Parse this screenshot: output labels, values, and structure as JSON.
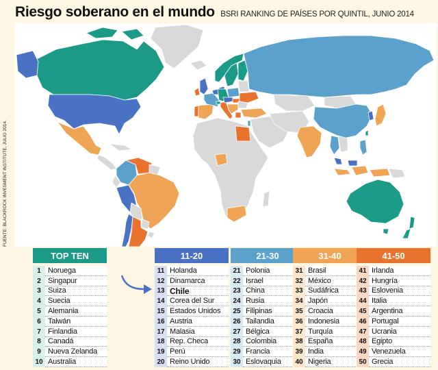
{
  "header": {
    "title": "Riesgo soberano en el mundo",
    "subtitle": "BSRI RANKING DE PAÍSES POR QUINTIL, JUNIO 2014"
  },
  "source": "FUENTE: BLACKROCK INVESMENT INSTITUTE, JULIO 2014.",
  "colors": {
    "top_ten": "#1b9a88",
    "q11_20": "#4a72c4",
    "q21_30": "#5ba1cc",
    "q31_40": "#f0a455",
    "q41_50": "#e8732e",
    "unranked": "#d9d9d9",
    "ocean": "#ffffff"
  },
  "panels": {
    "top10": {
      "header": "TOP TEN",
      "rows": [
        {
          "n": "1",
          "name": "Noruega"
        },
        {
          "n": "2",
          "name": "Singapur"
        },
        {
          "n": "3",
          "name": "Suiza"
        },
        {
          "n": "4",
          "name": "Suecia"
        },
        {
          "n": "5",
          "name": "Alemania"
        },
        {
          "n": "6",
          "name": "Taiwán"
        },
        {
          "n": "7",
          "name": "Finlandia"
        },
        {
          "n": "8",
          "name": "Canadá"
        },
        {
          "n": "9",
          "name": "Nueva Zelanda"
        },
        {
          "n": "10",
          "name": "Australia"
        }
      ]
    },
    "q2": {
      "header": "11-20",
      "rows": [
        {
          "n": "11",
          "name": "Holanda"
        },
        {
          "n": "12",
          "name": "Dinamarca"
        },
        {
          "n": "13",
          "name": "Chile"
        },
        {
          "n": "14",
          "name": "Corea del Sur"
        },
        {
          "n": "15",
          "name": "Estados Unidos"
        },
        {
          "n": "16",
          "name": "Austria"
        },
        {
          "n": "17",
          "name": "Malasia"
        },
        {
          "n": "18",
          "name": "Rep. Checa"
        },
        {
          "n": "19",
          "name": "Perú"
        },
        {
          "n": "20",
          "name": "Reino Unido"
        }
      ]
    },
    "q3": {
      "header": "21-30",
      "rows": [
        {
          "n": "21",
          "name": "Polonia"
        },
        {
          "n": "22",
          "name": "Israel"
        },
        {
          "n": "23",
          "name": "China"
        },
        {
          "n": "24",
          "name": "Rusia"
        },
        {
          "n": "25",
          "name": "Filipinas"
        },
        {
          "n": "26",
          "name": "Tailandia"
        },
        {
          "n": "27",
          "name": "Bélgica"
        },
        {
          "n": "28",
          "name": "Colombia"
        },
        {
          "n": "29",
          "name": "Francia"
        },
        {
          "n": "30",
          "name": "Eslovaquia"
        }
      ]
    },
    "q4": {
      "header": "31-40",
      "rows": [
        {
          "n": "31",
          "name": "Brasil"
        },
        {
          "n": "32",
          "name": "México"
        },
        {
          "n": "33",
          "name": "Sudáfrica"
        },
        {
          "n": "34",
          "name": "Japón"
        },
        {
          "n": "35",
          "name": "Croacia"
        },
        {
          "n": "36",
          "name": "Indonesia"
        },
        {
          "n": "37",
          "name": "Turquía"
        },
        {
          "n": "38",
          "name": "España"
        },
        {
          "n": "39",
          "name": "India"
        },
        {
          "n": "40",
          "name": "Nigeria"
        }
      ]
    },
    "q5": {
      "header": "41-50",
      "rows": [
        {
          "n": "41",
          "name": "Irlanda"
        },
        {
          "n": "42",
          "name": "Hungría"
        },
        {
          "n": "43",
          "name": "Eslovenia"
        },
        {
          "n": "44",
          "name": "Italia"
        },
        {
          "n": "45",
          "name": "Argentina"
        },
        {
          "n": "46",
          "name": "Portugal"
        },
        {
          "n": "47",
          "name": "Ucrania"
        },
        {
          "n": "48",
          "name": "Egipto"
        },
        {
          "n": "49",
          "name": "Venezuela"
        },
        {
          "n": "50",
          "name": "Grecia"
        }
      ]
    }
  }
}
